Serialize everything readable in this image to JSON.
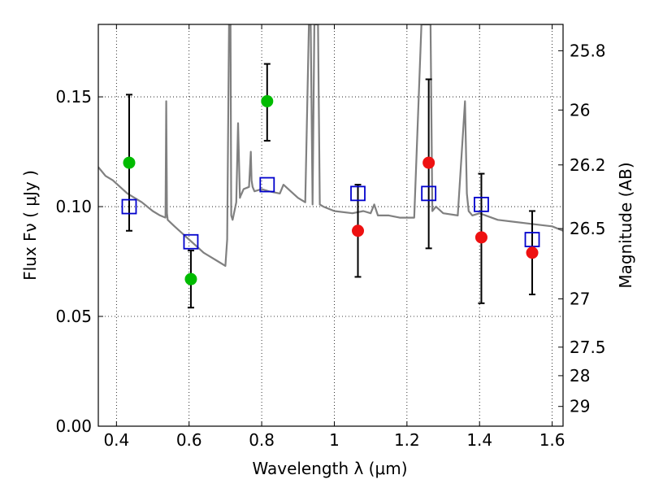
{
  "chart_data": {
    "type": "scatter",
    "xlabel": "Wavelength  λ (μm)",
    "ylabel": "Flux  Fν  ( μJy )",
    "y2label": "Magnitude (AB)",
    "xlim": [
      0.35,
      1.63
    ],
    "ylim": [
      0.0,
      0.183
    ],
    "grid": true,
    "x_ticks": [
      0.4,
      0.6,
      0.8,
      1.0,
      1.2,
      1.4,
      1.6
    ],
    "x_tick_labels": [
      "0.4",
      "0.6",
      "0.8",
      "1",
      "1.2",
      "1.4",
      "1.6"
    ],
    "y_ticks": [
      0.0,
      0.05,
      0.1,
      0.15
    ],
    "y_tick_labels": [
      "0.00",
      "0.05",
      "0.10",
      "0.15"
    ],
    "y2_ticks": [
      {
        "label": "25.8",
        "flux": 0.171
      },
      {
        "label": "26",
        "flux": 0.144
      },
      {
        "label": "26.2",
        "flux": 0.119
      },
      {
        "label": "26.5",
        "flux": 0.09
      },
      {
        "label": "27",
        "flux": 0.058
      },
      {
        "label": "27.5",
        "flux": 0.036
      },
      {
        "label": "28",
        "flux": 0.023
      },
      {
        "label": "29",
        "flux": 0.009
      }
    ],
    "colors": {
      "model": "#808080",
      "observed_detected": "#00bb00",
      "observed_other": "#ee1111",
      "model_photometry": "#0000cc",
      "errorbar": "#000000"
    },
    "series": [
      {
        "style": "line",
        "x": [
          0.35,
          0.37,
          0.39,
          0.41,
          0.43,
          0.45,
          0.47,
          0.5,
          0.52,
          0.535,
          0.537,
          0.539,
          0.541,
          0.56,
          0.58,
          0.6,
          0.62,
          0.64,
          0.66,
          0.68,
          0.7,
          0.705,
          0.71,
          0.712,
          0.714,
          0.716,
          0.72,
          0.73,
          0.735,
          0.74,
          0.742,
          0.745,
          0.75,
          0.765,
          0.77,
          0.772,
          0.775,
          0.78,
          0.8,
          0.82,
          0.85,
          0.86,
          0.88,
          0.9,
          0.92,
          0.93,
          0.935,
          0.94,
          0.945,
          0.95,
          0.955,
          0.96,
          0.97,
          1.0,
          1.05,
          1.08,
          1.1,
          1.11,
          1.12,
          1.15,
          1.18,
          1.2,
          1.22,
          1.24,
          1.25,
          1.255,
          1.26,
          1.265,
          1.27,
          1.28,
          1.3,
          1.34,
          1.36,
          1.365,
          1.37,
          1.38,
          1.4,
          1.45,
          1.5,
          1.55,
          1.6,
          1.63
        ],
        "y": [
          0.118,
          0.114,
          0.112,
          0.109,
          0.106,
          0.104,
          0.102,
          0.098,
          0.096,
          0.095,
          0.148,
          0.097,
          0.094,
          0.091,
          0.088,
          0.085,
          0.082,
          0.079,
          0.077,
          0.075,
          0.073,
          0.085,
          0.183,
          0.183,
          0.183,
          0.096,
          0.094,
          0.102,
          0.138,
          0.104,
          0.105,
          0.106,
          0.108,
          0.109,
          0.125,
          0.112,
          0.109,
          0.107,
          0.108,
          0.107,
          0.106,
          0.11,
          0.107,
          0.104,
          0.102,
          0.183,
          0.183,
          0.101,
          0.183,
          0.183,
          0.183,
          0.101,
          0.1,
          0.098,
          0.097,
          0.098,
          0.097,
          0.101,
          0.096,
          0.096,
          0.095,
          0.095,
          0.095,
          0.183,
          0.183,
          0.183,
          0.183,
          0.183,
          0.098,
          0.1,
          0.097,
          0.096,
          0.148,
          0.106,
          0.098,
          0.096,
          0.097,
          0.094,
          0.093,
          0.092,
          0.091,
          0.089
        ]
      },
      {
        "style": "marker-circle",
        "color_key": "observed_detected",
        "x": [
          0.435,
          0.605,
          0.815
        ],
        "y": [
          0.12,
          0.067,
          0.148
        ],
        "yerr": [
          [
            0.089,
            0.151
          ],
          [
            0.054,
            0.08
          ],
          [
            0.13,
            0.165
          ]
        ]
      },
      {
        "style": "marker-circle",
        "color_key": "observed_other",
        "x": [
          1.065,
          1.26,
          1.405,
          1.545
        ],
        "y": [
          0.089,
          0.12,
          0.086,
          0.079
        ],
        "yerr": [
          [
            0.068,
            0.11
          ],
          [
            0.081,
            0.158
          ],
          [
            0.056,
            0.115
          ],
          [
            0.06,
            0.098
          ]
        ]
      },
      {
        "style": "marker-square",
        "color_key": "model_photometry",
        "x": [
          0.435,
          0.605,
          0.815,
          1.065,
          1.26,
          1.405,
          1.545
        ],
        "y": [
          0.1,
          0.084,
          0.11,
          0.106,
          0.106,
          0.101,
          0.085
        ]
      }
    ]
  }
}
